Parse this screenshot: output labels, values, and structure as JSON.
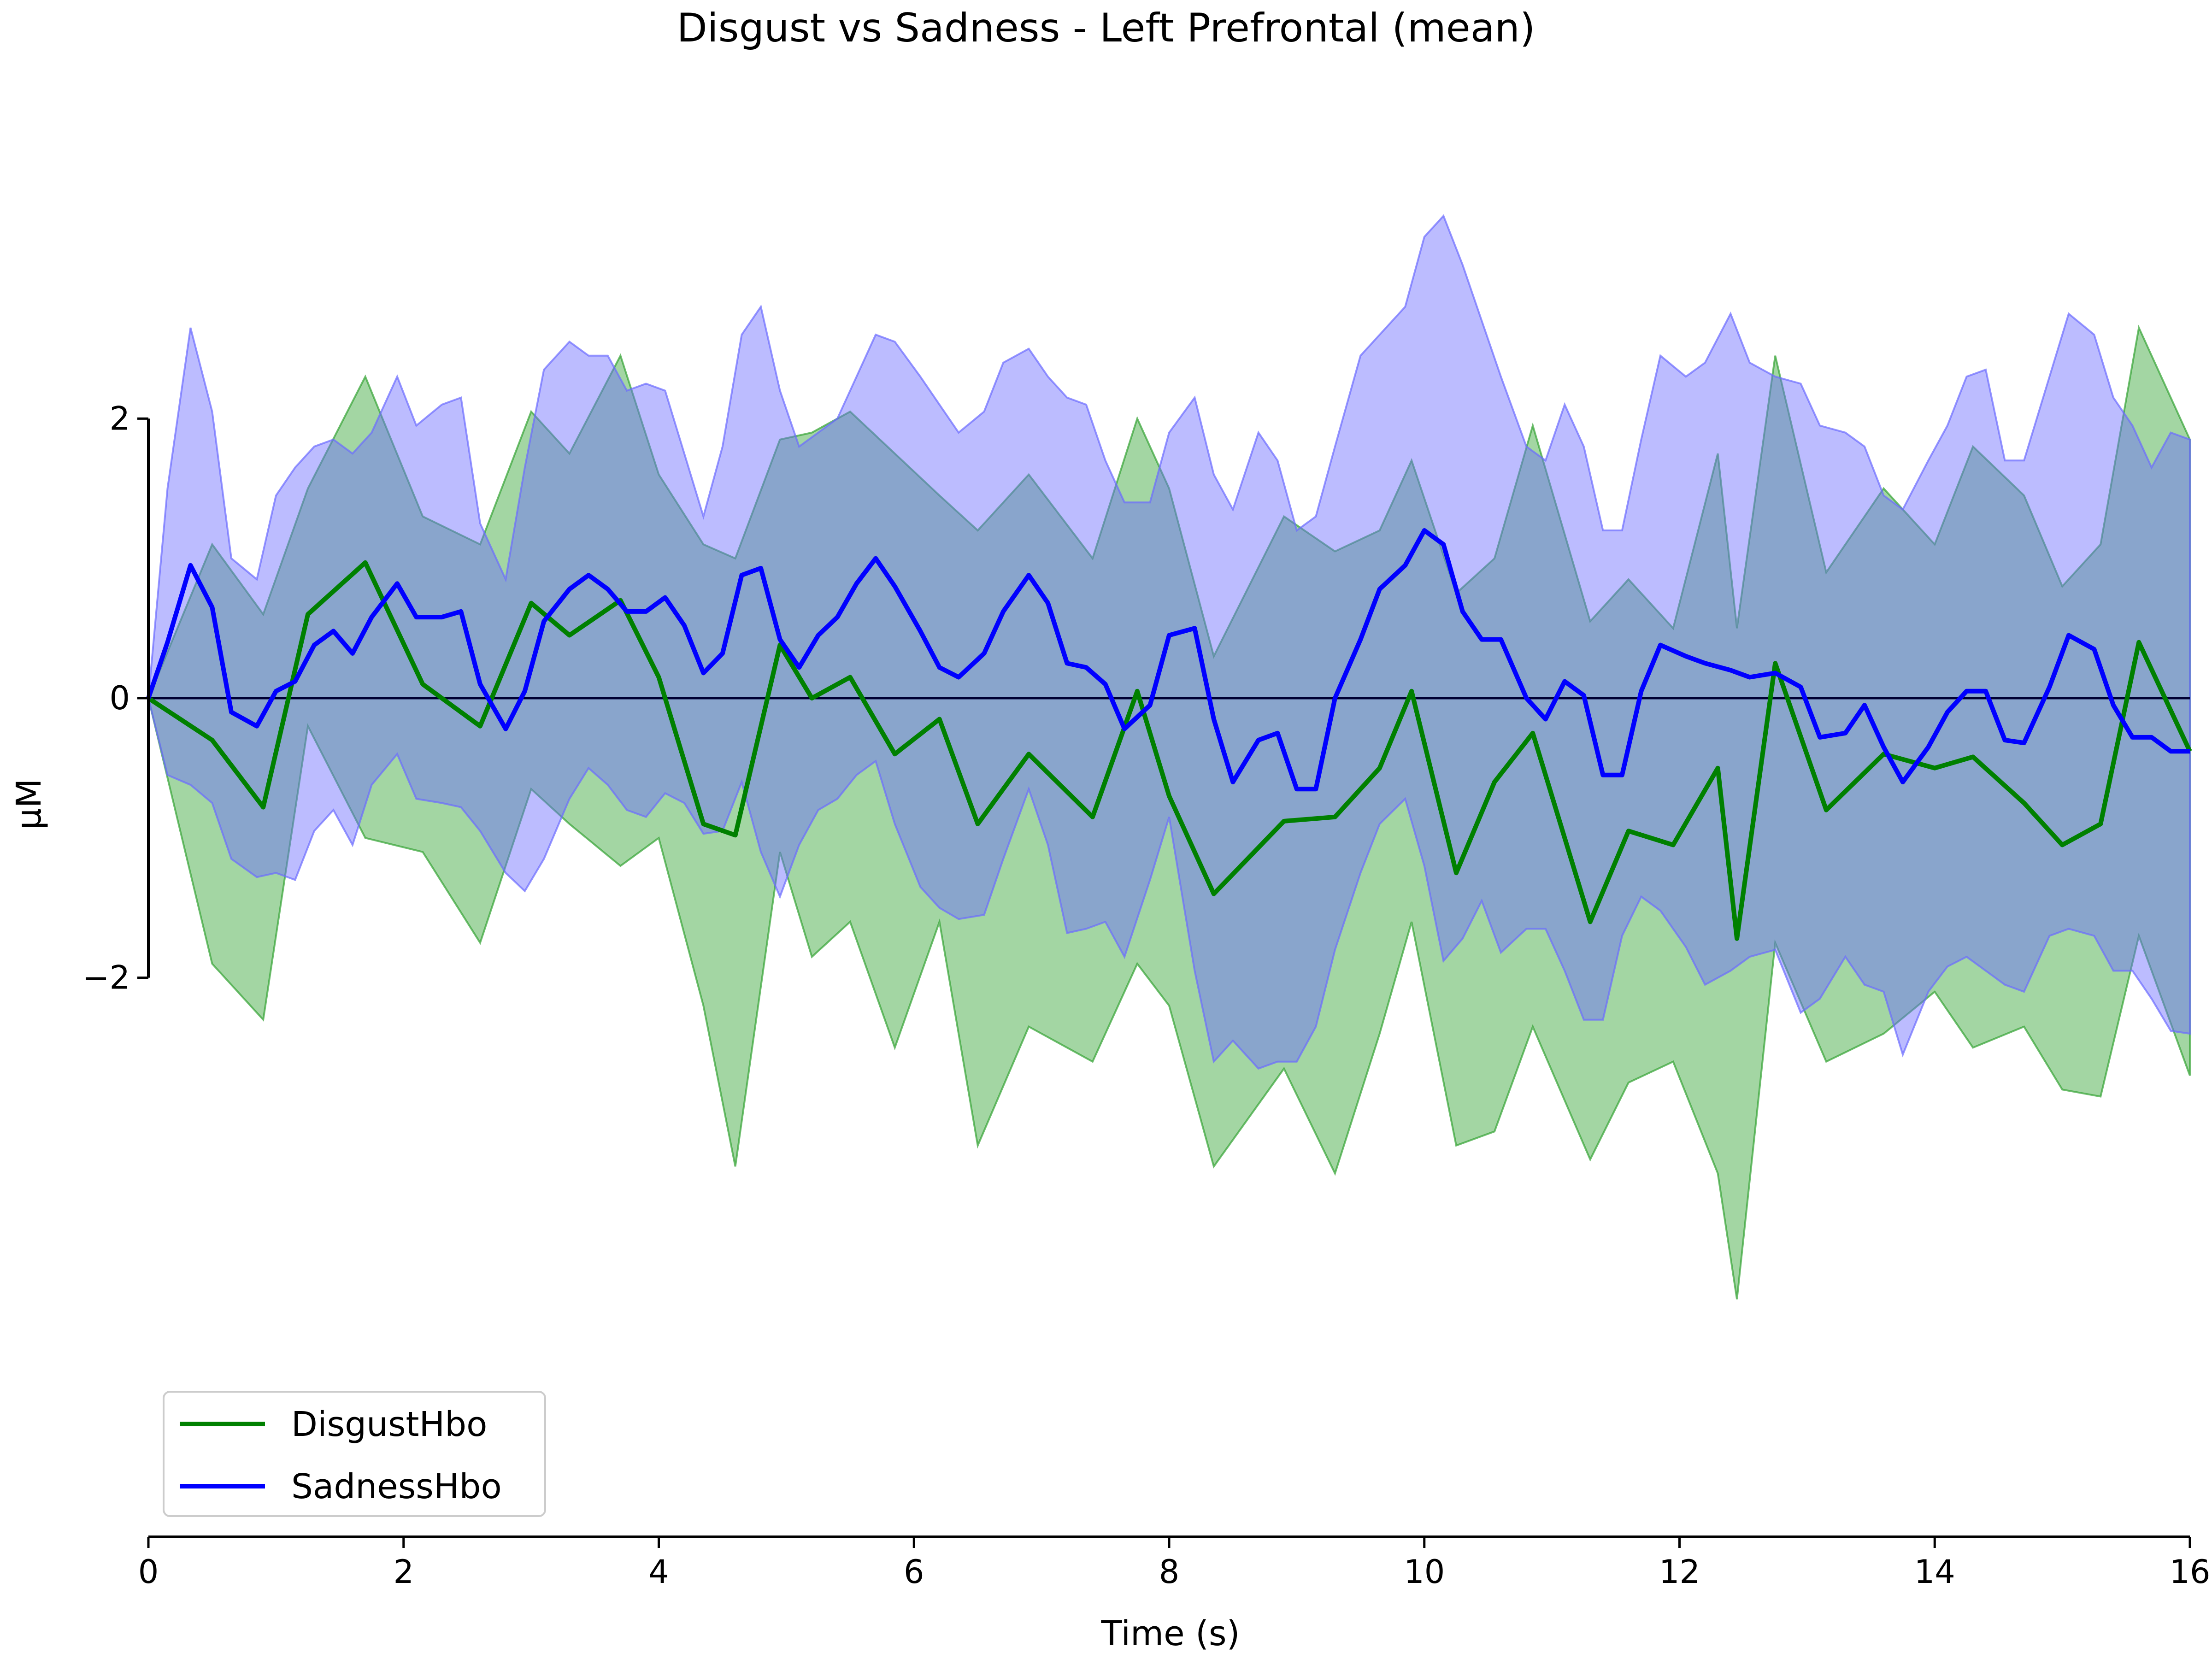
{
  "chart_data": {
    "type": "line",
    "title": "Disgust vs Sadness - Left Prefrontal (mean)",
    "xlabel": "Time (s)",
    "ylabel": "µM",
    "xlim": [
      0,
      16
    ],
    "ylim": [
      -6.0,
      4.5
    ],
    "x_ticks": [
      0,
      2,
      4,
      6,
      8,
      10,
      12,
      14,
      16
    ],
    "x_tick_labels": [
      "0",
      "2",
      "4",
      "6",
      "8",
      "10",
      "12",
      "14",
      "16"
    ],
    "y_ticks": [
      -2,
      0,
      2
    ],
    "y_tick_labels": [
      "−2",
      "0",
      "2"
    ],
    "grid": false,
    "zero_line": true,
    "legend_position": "lower-left",
    "series": [
      {
        "name": "DisgustHbo",
        "color": "#008000",
        "fill_color": "#33a333",
        "x": [
          0,
          0.5,
          0.9,
          1.25,
          1.7,
          2.15,
          2.6,
          3.0,
          3.3,
          3.7,
          4.0,
          4.35,
          4.6,
          4.95,
          5.2,
          5.5,
          5.85,
          6.2,
          6.5,
          6.9,
          7.4,
          7.75,
          8.0,
          8.35,
          8.9,
          9.3,
          9.65,
          9.9,
          10.25,
          10.55,
          10.85,
          11.3,
          11.6,
          11.95,
          12.3,
          12.45,
          12.75,
          13.15,
          13.6,
          14.0,
          14.3,
          14.7,
          15.0,
          15.3,
          15.6,
          16.0
        ],
        "values": [
          0,
          -0.3,
          -0.78,
          0.6,
          0.97,
          0.1,
          -0.2,
          0.68,
          0.45,
          0.7,
          0.15,
          -0.9,
          -0.98,
          0.38,
          0.0,
          0.15,
          -0.4,
          -0.15,
          -0.9,
          -0.4,
          -0.85,
          0.05,
          -0.7,
          -1.4,
          -0.88,
          -0.85,
          -0.5,
          0.05,
          -1.25,
          -0.6,
          -0.25,
          -1.6,
          -0.95,
          -1.05,
          -0.5,
          -1.72,
          0.25,
          -0.8,
          -0.4,
          -0.5,
          -0.42,
          -0.75,
          -1.05,
          -0.9,
          0.4,
          -0.38
        ],
        "upper": [
          0,
          1.1,
          0.6,
          1.5,
          2.3,
          1.3,
          1.1,
          2.05,
          1.75,
          2.45,
          1.6,
          1.1,
          1.0,
          1.85,
          1.9,
          2.05,
          1.75,
          1.45,
          1.2,
          1.6,
          1.0,
          2.0,
          1.5,
          0.3,
          1.3,
          1.05,
          1.2,
          1.7,
          0.75,
          1.0,
          1.95,
          0.55,
          0.85,
          0.5,
          1.75,
          0.5,
          2.45,
          0.9,
          1.5,
          1.1,
          1.8,
          1.45,
          0.8,
          1.1,
          2.65,
          1.85
        ],
        "lower": [
          0,
          -1.9,
          -2.3,
          -0.2,
          -1.0,
          -1.1,
          -1.75,
          -0.65,
          -0.9,
          -1.2,
          -1.0,
          -2.2,
          -3.35,
          -1.1,
          -1.85,
          -1.6,
          -2.5,
          -1.6,
          -3.2,
          -2.35,
          -2.6,
          -1.9,
          -2.2,
          -3.35,
          -2.65,
          -3.4,
          -2.4,
          -1.6,
          -3.2,
          -3.1,
          -2.35,
          -3.3,
          -2.75,
          -2.6,
          -3.4,
          -4.3,
          -1.75,
          -2.6,
          -2.4,
          -2.1,
          -2.5,
          -2.35,
          -2.8,
          -2.85,
          -1.7,
          -2.7
        ]
      },
      {
        "name": "SadnessHbo",
        "color": "#0000ff",
        "fill_color": "#6b6bff",
        "x": [
          0,
          0.15,
          0.33,
          0.5,
          0.65,
          0.85,
          1.0,
          1.15,
          1.3,
          1.45,
          1.6,
          1.75,
          1.95,
          2.1,
          2.3,
          2.45,
          2.6,
          2.8,
          2.95,
          3.1,
          3.3,
          3.45,
          3.6,
          3.75,
          3.9,
          4.05,
          4.2,
          4.35,
          4.5,
          4.65,
          4.8,
          4.95,
          5.1,
          5.25,
          5.4,
          5.55,
          5.7,
          5.85,
          6.05,
          6.2,
          6.35,
          6.55,
          6.7,
          6.9,
          7.05,
          7.2,
          7.35,
          7.5,
          7.65,
          7.85,
          8.0,
          8.2,
          8.35,
          8.5,
          8.7,
          8.85,
          9.0,
          9.15,
          9.3,
          9.5,
          9.65,
          9.85,
          10.0,
          10.15,
          10.3,
          10.45,
          10.6,
          10.8,
          10.95,
          11.1,
          11.25,
          11.4,
          11.55,
          11.7,
          11.85,
          12.05,
          12.2,
          12.4,
          12.55,
          12.75,
          12.95,
          13.1,
          13.3,
          13.45,
          13.6,
          13.75,
          13.95,
          14.1,
          14.25,
          14.4,
          14.55,
          14.7,
          14.9,
          15.05,
          15.25,
          15.4,
          15.55,
          15.7,
          15.85,
          16.0
        ],
        "values": [
          0,
          0.4,
          0.95,
          0.65,
          -0.1,
          -0.2,
          0.05,
          0.12,
          0.38,
          0.48,
          0.32,
          0.58,
          0.82,
          0.58,
          0.58,
          0.62,
          0.1,
          -0.22,
          0.05,
          0.55,
          0.78,
          0.88,
          0.78,
          0.62,
          0.62,
          0.72,
          0.52,
          0.18,
          0.32,
          0.88,
          0.93,
          0.42,
          0.22,
          0.45,
          0.58,
          0.82,
          1.0,
          0.8,
          0.48,
          0.22,
          0.15,
          0.32,
          0.62,
          0.88,
          0.68,
          0.25,
          0.22,
          0.1,
          -0.22,
          -0.05,
          0.45,
          0.5,
          -0.15,
          -0.6,
          -0.3,
          -0.25,
          -0.65,
          -0.65,
          0.0,
          0.42,
          0.78,
          0.95,
          1.2,
          1.1,
          0.62,
          0.42,
          0.42,
          0.0,
          -0.15,
          0.12,
          0.02,
          -0.55,
          -0.55,
          0.05,
          0.38,
          0.3,
          0.25,
          0.2,
          0.15,
          0.18,
          0.08,
          -0.28,
          -0.25,
          -0.05,
          -0.35,
          -0.6,
          -0.35,
          -0.1,
          0.05,
          0.05,
          -0.3,
          -0.32,
          0.08,
          0.45,
          0.35,
          -0.05,
          -0.28,
          -0.28,
          -0.38,
          -0.38
        ],
        "upper": [
          0,
          1.5,
          2.65,
          2.05,
          1.0,
          0.85,
          1.45,
          1.65,
          1.8,
          1.85,
          1.75,
          1.9,
          2.3,
          1.95,
          2.1,
          2.15,
          1.25,
          0.85,
          1.65,
          2.35,
          2.55,
          2.45,
          2.45,
          2.2,
          2.25,
          2.2,
          1.75,
          1.3,
          1.8,
          2.6,
          2.8,
          2.2,
          1.8,
          1.9,
          2.0,
          2.3,
          2.6,
          2.55,
          2.3,
          2.1,
          1.9,
          2.05,
          2.4,
          2.5,
          2.3,
          2.15,
          2.1,
          1.7,
          1.4,
          1.4,
          1.9,
          2.15,
          1.6,
          1.35,
          1.9,
          1.7,
          1.2,
          1.3,
          1.8,
          2.45,
          2.6,
          2.8,
          3.3,
          3.45,
          3.1,
          2.7,
          2.3,
          1.8,
          1.7,
          2.1,
          1.8,
          1.2,
          1.2,
          1.85,
          2.45,
          2.3,
          2.4,
          2.75,
          2.4,
          2.3,
          2.25,
          1.95,
          1.9,
          1.8,
          1.45,
          1.35,
          1.7,
          1.95,
          2.3,
          2.35,
          1.7,
          1.7,
          2.3,
          2.75,
          2.6,
          2.15,
          1.95,
          1.65,
          1.9,
          1.85
        ],
        "lower": [
          0,
          -0.55,
          -0.62,
          -0.75,
          -1.15,
          -1.28,
          -1.25,
          -1.3,
          -0.95,
          -0.8,
          -1.05,
          -0.62,
          -0.4,
          -0.72,
          -0.75,
          -0.78,
          -0.95,
          -1.25,
          -1.38,
          -1.15,
          -0.72,
          -0.5,
          -0.62,
          -0.8,
          -0.85,
          -0.68,
          -0.75,
          -0.97,
          -0.95,
          -0.6,
          -1.1,
          -1.42,
          -1.05,
          -0.8,
          -0.72,
          -0.55,
          -0.45,
          -0.9,
          -1.35,
          -1.5,
          -1.58,
          -1.55,
          -1.15,
          -0.65,
          -1.05,
          -1.68,
          -1.65,
          -1.6,
          -1.85,
          -1.3,
          -0.85,
          -1.95,
          -2.6,
          -2.45,
          -2.65,
          -2.6,
          -2.6,
          -2.35,
          -1.8,
          -1.25,
          -0.9,
          -0.72,
          -1.2,
          -1.88,
          -1.72,
          -1.45,
          -1.82,
          -1.65,
          -1.65,
          -1.95,
          -2.3,
          -2.3,
          -1.7,
          -1.42,
          -1.52,
          -1.78,
          -2.05,
          -1.95,
          -1.85,
          -1.8,
          -2.25,
          -2.15,
          -1.85,
          -2.05,
          -2.1,
          -2.55,
          -2.1,
          -1.92,
          -1.85,
          -1.95,
          -2.05,
          -2.1,
          -1.7,
          -1.65,
          -1.7,
          -1.95,
          -1.95,
          -2.15,
          -2.38,
          -2.4
        ]
      }
    ]
  }
}
